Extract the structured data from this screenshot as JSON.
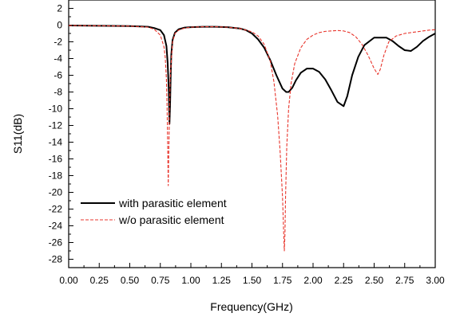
{
  "chart_data": {
    "type": "line",
    "title": "",
    "xlabel": "Frequency(GHz)",
    "ylabel": "S11(dB)",
    "xlim": [
      0,
      3.0
    ],
    "ylim": [
      -29,
      3
    ],
    "x_ticks": [
      0,
      0.25,
      0.5,
      0.75,
      1.0,
      1.25,
      1.5,
      1.75,
      2.0,
      2.25,
      2.5,
      2.75,
      3.0
    ],
    "x_tick_labels": [
      "0.00",
      "0.25",
      "0.50",
      "0.75",
      "1.00",
      "1.25",
      "1.50",
      "1.75",
      "2.00",
      "2.25",
      "2.50",
      "2.75",
      "3.00"
    ],
    "y_ticks": [
      2,
      0,
      -2,
      -4,
      -6,
      -8,
      -10,
      -12,
      -14,
      -16,
      -18,
      -20,
      -22,
      -24,
      -26,
      -28
    ],
    "y_tick_labels": [
      "2",
      "0",
      "-2",
      "-4",
      "-6",
      "-8",
      "-10",
      "-12",
      "-14",
      "-16",
      "-18",
      "-20",
      "-22",
      "-24",
      "-26",
      "-28"
    ],
    "grid": false,
    "legend_position": "lower-left",
    "series": [
      {
        "name": "with parasitic element",
        "color": "#000000",
        "style": "solid",
        "x": [
          0.0,
          0.25,
          0.5,
          0.65,
          0.7,
          0.75,
          0.78,
          0.8,
          0.81,
          0.82,
          0.825,
          0.83,
          0.835,
          0.84,
          0.85,
          0.87,
          0.9,
          0.95,
          1.0,
          1.1,
          1.2,
          1.3,
          1.4,
          1.45,
          1.5,
          1.55,
          1.6,
          1.65,
          1.7,
          1.75,
          1.78,
          1.8,
          1.83,
          1.86,
          1.9,
          1.95,
          2.0,
          2.05,
          2.1,
          2.15,
          2.2,
          2.25,
          2.28,
          2.32,
          2.37,
          2.42,
          2.5,
          2.6,
          2.65,
          2.7,
          2.75,
          2.8,
          2.85,
          2.9,
          2.95,
          3.0
        ],
        "y": [
          -0.05,
          -0.08,
          -0.12,
          -0.2,
          -0.35,
          -0.6,
          -1.2,
          -2.5,
          -4.5,
          -8.0,
          -11.8,
          -9.5,
          -6.0,
          -3.5,
          -1.8,
          -0.9,
          -0.5,
          -0.3,
          -0.25,
          -0.2,
          -0.2,
          -0.25,
          -0.4,
          -0.6,
          -1.0,
          -1.7,
          -2.7,
          -4.2,
          -6.0,
          -7.6,
          -8.0,
          -8.0,
          -7.5,
          -6.6,
          -5.7,
          -5.2,
          -5.2,
          -5.6,
          -6.5,
          -7.8,
          -9.2,
          -9.7,
          -8.5,
          -6.0,
          -3.8,
          -2.4,
          -1.5,
          -1.5,
          -1.9,
          -2.5,
          -3.0,
          -3.1,
          -2.6,
          -1.9,
          -1.4,
          -1.0
        ]
      },
      {
        "name": "w/o parasitic element",
        "color": "#e8352c",
        "style": "dashed",
        "x": [
          0.0,
          0.25,
          0.5,
          0.65,
          0.7,
          0.75,
          0.78,
          0.79,
          0.8,
          0.805,
          0.81,
          0.815,
          0.82,
          0.83,
          0.85,
          0.87,
          0.9,
          0.95,
          1.0,
          1.1,
          1.2,
          1.3,
          1.4,
          1.5,
          1.55,
          1.6,
          1.65,
          1.68,
          1.71,
          1.73,
          1.75,
          1.76,
          1.765,
          1.77,
          1.775,
          1.785,
          1.8,
          1.82,
          1.85,
          1.9,
          1.95,
          2.0,
          2.05,
          2.1,
          2.15,
          2.2,
          2.25,
          2.3,
          2.35,
          2.4,
          2.45,
          2.5,
          2.53,
          2.55,
          2.58,
          2.62,
          2.68,
          2.75,
          2.85,
          2.95,
          3.0
        ],
        "y": [
          -0.05,
          -0.08,
          -0.12,
          -0.25,
          -0.5,
          -1.2,
          -2.6,
          -3.8,
          -6.5,
          -9.5,
          -14.0,
          -19.2,
          -14.5,
          -6.5,
          -2.0,
          -1.0,
          -0.6,
          -0.35,
          -0.25,
          -0.2,
          -0.2,
          -0.25,
          -0.4,
          -0.8,
          -1.3,
          -2.3,
          -4.3,
          -6.8,
          -10.8,
          -15.0,
          -20.5,
          -25.0,
          -27.0,
          -25.0,
          -20.5,
          -14.5,
          -10.0,
          -7.0,
          -4.6,
          -2.7,
          -1.7,
          -1.2,
          -0.9,
          -0.75,
          -0.7,
          -0.65,
          -0.7,
          -0.9,
          -1.4,
          -2.3,
          -3.6,
          -5.2,
          -5.9,
          -5.3,
          -3.6,
          -2.0,
          -1.3,
          -1.0,
          -0.8,
          -0.6,
          -0.55
        ]
      }
    ]
  }
}
